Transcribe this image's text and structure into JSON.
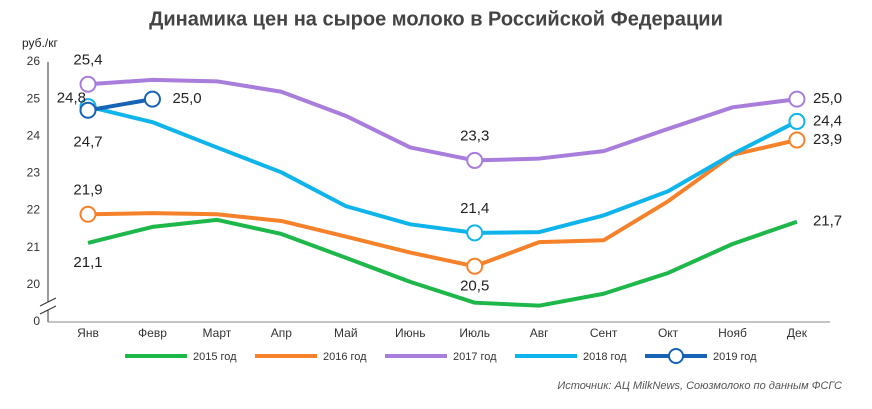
{
  "chart_data": {
    "type": "line",
    "title": "Динамика цен на сырое молоко в Российской Федерации",
    "y_label": "руб./кг",
    "source": "Источник: АЦ MilkNews, Союзмолоко по данным ФСГС",
    "categories": [
      "Янв",
      "Февр",
      "Март",
      "Апр",
      "Май",
      "Июнь",
      "Июль",
      "Авг",
      "Сент",
      "Окт",
      "Нояб",
      "Дек"
    ],
    "ylim": [
      0,
      26
    ],
    "axis_break": [
      0,
      19
    ],
    "yticks": [
      0,
      20,
      21,
      22,
      23,
      24,
      25,
      26
    ],
    "grid": false,
    "legend": "bottom",
    "series": [
      {
        "name": "2015 год",
        "color": "#1db74a",
        "markers": false,
        "values": [
          21.13,
          21.56,
          21.75,
          21.37,
          20.73,
          20.08,
          19.52,
          19.44,
          19.76,
          20.32,
          21.1,
          21.7
        ],
        "value_labels": [
          "21,1",
          null,
          null,
          null,
          null,
          null,
          null,
          null,
          null,
          null,
          null,
          "21,7"
        ]
      },
      {
        "name": "2016 год",
        "color": "#f5822a",
        "markers": true,
        "values": [
          21.9,
          21.93,
          21.9,
          21.72,
          21.3,
          20.87,
          20.5,
          21.15,
          21.2,
          22.25,
          23.5,
          23.9
        ],
        "value_labels": [
          "21,9",
          null,
          null,
          null,
          null,
          null,
          "20,5",
          null,
          null,
          null,
          null,
          "23,9"
        ]
      },
      {
        "name": "2017 год",
        "color": "#a97ddb",
        "markers": true,
        "values": [
          25.4,
          25.52,
          25.48,
          25.2,
          24.55,
          23.7,
          23.35,
          23.4,
          23.6,
          24.2,
          24.78,
          25.0
        ],
        "value_labels": [
          "25,4",
          null,
          null,
          null,
          null,
          null,
          "23,3",
          null,
          null,
          null,
          null,
          "25,0"
        ]
      },
      {
        "name": "2018 год",
        "color": "#0fb4ea",
        "markers": true,
        "values": [
          24.8,
          24.38,
          23.7,
          23.03,
          22.12,
          21.63,
          21.4,
          21.42,
          21.87,
          22.52,
          23.52,
          24.4
        ],
        "value_labels": [
          "24,8",
          null,
          null,
          null,
          null,
          null,
          "21,4",
          null,
          null,
          null,
          null,
          "24,4"
        ]
      },
      {
        "name": "2019 год",
        "color": "#1763b5",
        "markers": true,
        "values": [
          24.7,
          25.0,
          null,
          null,
          null,
          null,
          null,
          null,
          null,
          null,
          null,
          null
        ],
        "value_labels": [
          "24,7",
          "25,0",
          null,
          null,
          null,
          null,
          null,
          null,
          null,
          null,
          null,
          null
        ]
      }
    ]
  }
}
